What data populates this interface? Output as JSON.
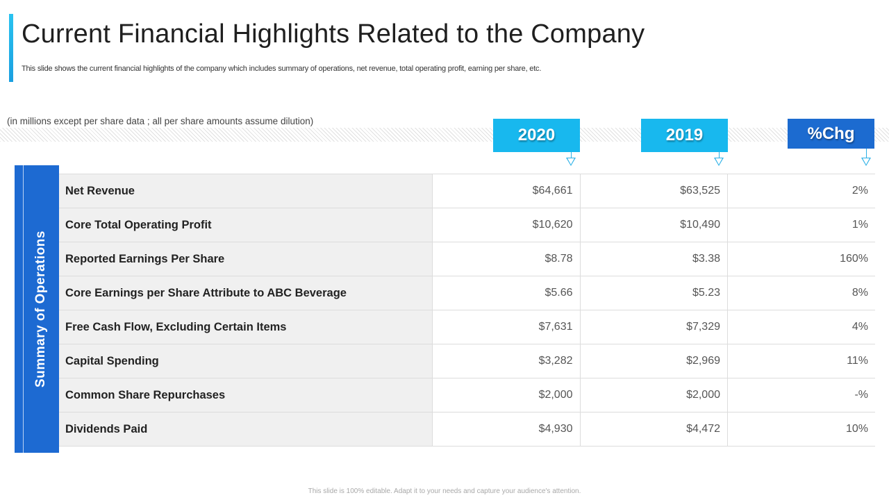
{
  "header": {
    "title": "Current Financial Highlights Related to the Company",
    "subtitle": "This slide shows the current financial highlights of the company which includes summary of operations, net revenue, total operating profit, earning per share, etc."
  },
  "note": "(in millions except per share data ; all per share amounts assume dilution)",
  "columns": [
    "2020",
    "2019",
    "%Chg"
  ],
  "side_label": "Summary of Operations",
  "rows": [
    {
      "label": "Net Revenue",
      "v2020": "$64,661",
      "v2019": "$63,525",
      "chg": "2%"
    },
    {
      "label": "Core Total Operating Profit",
      "v2020": "$10,620",
      "v2019": "$10,490",
      "chg": "1%"
    },
    {
      "label": "Reported Earnings Per Share",
      "v2020": "$8.78",
      "v2019": "$3.38",
      "chg": "160%"
    },
    {
      "label": "Core Earnings per Share Attribute to ABC Beverage",
      "v2020": "$5.66",
      "v2019": "$5.23",
      "chg": "8%"
    },
    {
      "label": "Free Cash Flow, Excluding Certain Items",
      "v2020": "$7,631",
      "v2019": "$7,329",
      "chg": "4%"
    },
    {
      "label": "Capital Spending",
      "v2020": "$3,282",
      "v2019": "$2,969",
      "chg": "11%"
    },
    {
      "label": "Common Share Repurchases",
      "v2020": "$2,000",
      "v2019": "$2,000",
      "chg": "-%"
    },
    {
      "label": "Dividends Paid",
      "v2020": "$4,930",
      "v2019": "$4,472",
      "chg": "10%"
    }
  ],
  "footer": "This slide is 100% editable. Adapt it to your needs and capture your audience's attention.",
  "colors": {
    "accent_light": "#18b8ee",
    "accent_dark": "#1c6bd0",
    "side_bar": "#1d6ad2"
  }
}
